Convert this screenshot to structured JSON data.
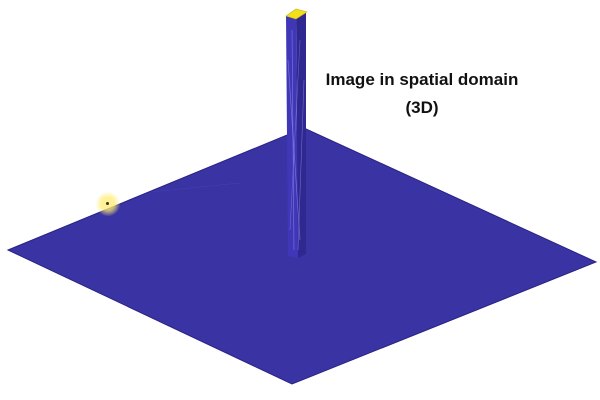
{
  "caption": {
    "line1": "Image in spatial domain",
    "line2": "(3D)"
  },
  "colors": {
    "surface": "#3a33a3",
    "surface_edge": "#2a2385",
    "spike_front": "#3f37b8",
    "spike_side": "#2f2891",
    "spike_top": "#f2e01e",
    "highlight": "#fff08a"
  },
  "icons": {
    "cursor": "cursor-highlight-icon"
  }
}
